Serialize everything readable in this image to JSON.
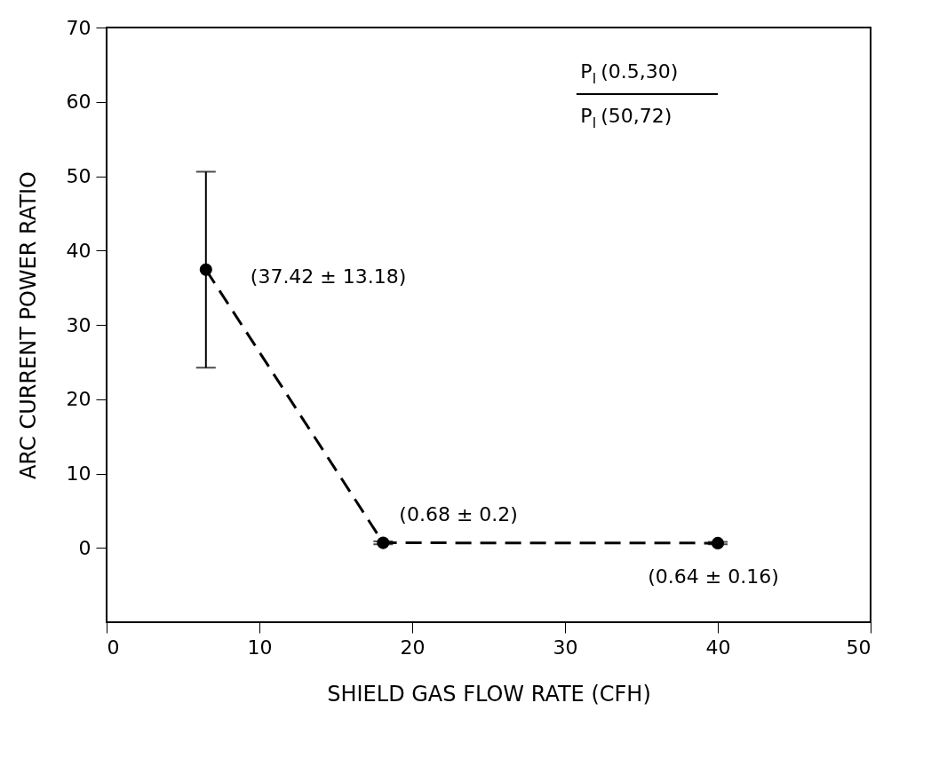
{
  "chart_data": {
    "type": "line",
    "xlabel": "SHIELD GAS FLOW RATE (CFH)",
    "ylabel": "ARC CURRENT POWER RATIO",
    "x": [
      6.5,
      18.1,
      40
    ],
    "series": [
      {
        "color": "#000000",
        "values": [
          37.42,
          0.68,
          0.64
        ],
        "errors": [
          13.18,
          0.2,
          0.16
        ]
      }
    ],
    "xlim": [
      0,
      50
    ],
    "xticks": [
      0,
      10,
      20,
      30,
      40,
      50
    ],
    "ylim": [
      -10,
      70
    ],
    "yticks": [
      0,
      10,
      20,
      30,
      40,
      50,
      60,
      70
    ],
    "marker": "circle",
    "line_style": "dashed",
    "grid": false,
    "annotations": [
      {
        "text": "(37.42 ± 13.18)",
        "x": 6.5,
        "y": 37.42
      },
      {
        "text": "(0.68 ± 0.2)",
        "x": 18.1,
        "y": 0.68
      },
      {
        "text": "(0.64 ± 0.16)",
        "x": 40,
        "y": 0.64
      },
      "P$_{I}$ (0.5,30)",
      "P$_{I}$ (50,72)"
    ]
  }
}
